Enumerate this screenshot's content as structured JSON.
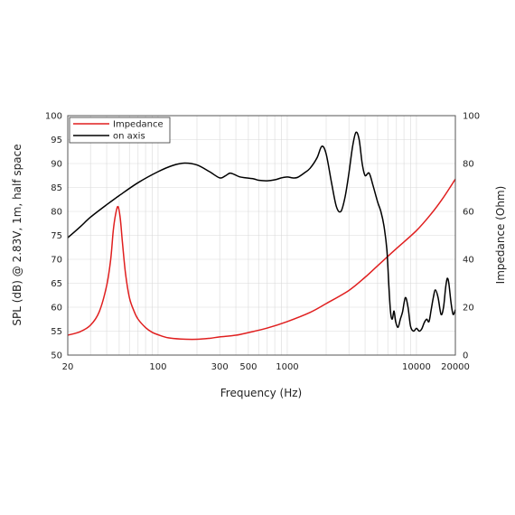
{
  "colors": {
    "impedance": "#e01f1f",
    "on_axis": "#000000",
    "grid": "#d9d9d9",
    "frame": "#555555"
  },
  "chart_data": {
    "type": "line",
    "title": "",
    "xlabel": "Frequency (Hz)",
    "ylabel": "SPL (dB) @ 2.83V, 1m, half space",
    "y2label": "Impedance (Ohm)",
    "x_scale": "log",
    "xlim": [
      20,
      20000
    ],
    "ylim": [
      50,
      100
    ],
    "y2lim": [
      0,
      100
    ],
    "grid": true,
    "legend_position": "top-left",
    "x_ticks": [
      {
        "value": 20,
        "label": "20"
      },
      {
        "value": 100,
        "label": "100"
      },
      {
        "value": 300,
        "label": "300"
      },
      {
        "value": 500,
        "label": "500"
      },
      {
        "value": 1000,
        "label": "1000"
      },
      {
        "value": 10000,
        "label": "10000"
      },
      {
        "value": 20000,
        "label": "20000"
      }
    ],
    "y_ticks": [
      "50",
      "55",
      "60",
      "65",
      "70",
      "75",
      "80",
      "85",
      "90",
      "95",
      "100"
    ],
    "y2_ticks": [
      "0",
      "20",
      "40",
      "60",
      "80",
      "100"
    ],
    "series": [
      {
        "name": "Impedance",
        "axis": "right",
        "color": "#e01f1f",
        "points": [
          [
            20,
            8.3
          ],
          [
            25,
            9.8
          ],
          [
            30,
            12.5
          ],
          [
            35,
            18
          ],
          [
            40,
            29
          ],
          [
            43,
            40
          ],
          [
            45,
            52
          ],
          [
            47,
            59
          ],
          [
            49,
            62
          ],
          [
            51,
            57
          ],
          [
            53,
            47
          ],
          [
            56,
            34
          ],
          [
            60,
            24
          ],
          [
            65,
            18.5
          ],
          [
            70,
            15
          ],
          [
            80,
            11.5
          ],
          [
            90,
            9.5
          ],
          [
            100,
            8.5
          ],
          [
            120,
            7.2
          ],
          [
            150,
            6.7
          ],
          [
            200,
            6.6
          ],
          [
            250,
            7
          ],
          [
            300,
            7.6
          ],
          [
            400,
            8.3
          ],
          [
            500,
            9.4
          ],
          [
            700,
            11.3
          ],
          [
            1000,
            14
          ],
          [
            1500,
            17.8
          ],
          [
            2000,
            21.5
          ],
          [
            3000,
            27
          ],
          [
            4000,
            32.5
          ],
          [
            5000,
            37.3
          ],
          [
            7000,
            44.5
          ],
          [
            10000,
            52
          ],
          [
            13000,
            59
          ],
          [
            16000,
            65.5
          ],
          [
            20000,
            73.5
          ]
        ]
      },
      {
        "name": "on axis",
        "axis": "left",
        "color": "#000000",
        "points": [
          [
            20,
            74.5
          ],
          [
            25,
            76.8
          ],
          [
            30,
            78.8
          ],
          [
            40,
            81.4
          ],
          [
            50,
            83.3
          ],
          [
            70,
            86
          ],
          [
            100,
            88.3
          ],
          [
            130,
            89.6
          ],
          [
            160,
            90.1
          ],
          [
            200,
            89.7
          ],
          [
            250,
            88.3
          ],
          [
            300,
            87
          ],
          [
            330,
            87.4
          ],
          [
            360,
            88
          ],
          [
            390,
            87.7
          ],
          [
            430,
            87.2
          ],
          [
            480,
            87
          ],
          [
            550,
            86.8
          ],
          [
            600,
            86.5
          ],
          [
            700,
            86.4
          ],
          [
            800,
            86.6
          ],
          [
            900,
            87
          ],
          [
            1000,
            87.2
          ],
          [
            1100,
            87
          ],
          [
            1200,
            87.1
          ],
          [
            1350,
            88
          ],
          [
            1500,
            89
          ],
          [
            1700,
            91.2
          ],
          [
            1850,
            93.6
          ],
          [
            2000,
            92
          ],
          [
            2200,
            86
          ],
          [
            2400,
            81
          ],
          [
            2600,
            80
          ],
          [
            2800,
            83
          ],
          [
            3000,
            88
          ],
          [
            3200,
            93.5
          ],
          [
            3400,
            96.5
          ],
          [
            3600,
            95
          ],
          [
            3800,
            90
          ],
          [
            4000,
            87.5
          ],
          [
            4300,
            88
          ],
          [
            4600,
            85.5
          ],
          [
            5000,
            82
          ],
          [
            5300,
            80
          ],
          [
            5600,
            77
          ],
          [
            5900,
            72
          ],
          [
            6100,
            65
          ],
          [
            6300,
            59
          ],
          [
            6500,
            57.5
          ],
          [
            6700,
            59.2
          ],
          [
            6900,
            57
          ],
          [
            7200,
            55.8
          ],
          [
            7500,
            57.5
          ],
          [
            7800,
            59
          ],
          [
            8200,
            62
          ],
          [
            8600,
            60
          ],
          [
            9000,
            56
          ],
          [
            9500,
            55
          ],
          [
            10000,
            55.6
          ],
          [
            10500,
            55
          ],
          [
            11000,
            55.5
          ],
          [
            11500,
            56.8
          ],
          [
            12000,
            57.5
          ],
          [
            12500,
            57
          ],
          [
            13000,
            59.5
          ],
          [
            13500,
            62
          ],
          [
            14000,
            63.6
          ],
          [
            14700,
            62
          ],
          [
            15500,
            58.5
          ],
          [
            16200,
            60
          ],
          [
            16800,
            64
          ],
          [
            17300,
            66
          ],
          [
            17800,
            65
          ],
          [
            18500,
            61
          ],
          [
            19200,
            58.5
          ],
          [
            20000,
            59.5
          ]
        ]
      }
    ]
  }
}
